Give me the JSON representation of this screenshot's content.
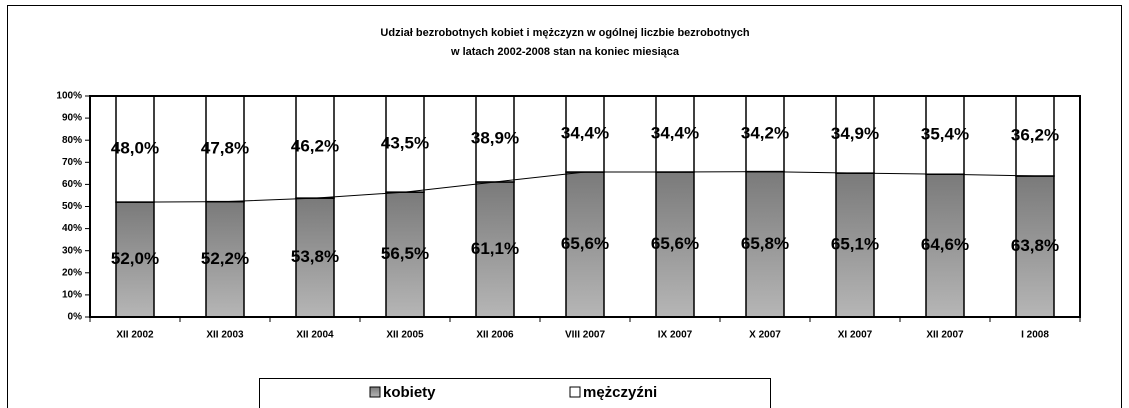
{
  "chart_data": {
    "type": "stacked_bar_100",
    "title": "Udział bezrobotnych kobiet i mężczyzn w ogólnej liczbie  bezrobotnych",
    "subtitle": "w latach 2002-2008 stan na koniec miesiąca",
    "categories": [
      "XII 2002",
      "XII 2003",
      "XII 2004",
      "XII 2005",
      "XII 2006",
      "VIII 2007",
      "IX 2007",
      "X 2007",
      "XI 2007",
      "XII 2007",
      "I 2008"
    ],
    "series": [
      {
        "name": "kobiety",
        "color": "#7a7a7a",
        "values": [
          52.0,
          52.2,
          53.8,
          56.5,
          61.1,
          65.6,
          65.6,
          65.8,
          65.1,
          64.6,
          63.8
        ],
        "value_labels": [
          "52,0%",
          "52,2%",
          "53,8%",
          "56,5%",
          "61,1%",
          "65,6%",
          "65,6%",
          "65,8%",
          "65,1%",
          "64,6%",
          "63,8%"
        ]
      },
      {
        "name": "mężczyźni",
        "color": "#ffffff",
        "values": [
          48.0,
          47.8,
          46.2,
          43.5,
          38.9,
          34.4,
          34.4,
          34.2,
          34.9,
          35.4,
          36.2
        ],
        "value_labels": [
          "48,0%",
          "47,8%",
          "46,2%",
          "43,5%",
          "38,9%",
          "34,4%",
          "34,4%",
          "34,2%",
          "34,9%",
          "35,4%",
          "36,2%"
        ]
      }
    ],
    "ylim": [
      0,
      100
    ],
    "yticks": [
      {
        "value": 0,
        "label": "0%"
      },
      {
        "value": 10,
        "label": "10%"
      },
      {
        "value": 20,
        "label": "20%"
      },
      {
        "value": 30,
        "label": "30%"
      },
      {
        "value": 40,
        "label": "40%"
      },
      {
        "value": 50,
        "label": "50%"
      },
      {
        "value": 60,
        "label": "60%"
      },
      {
        "value": 70,
        "label": "70%"
      },
      {
        "value": 80,
        "label": "80%"
      },
      {
        "value": 90,
        "label": "90%"
      },
      {
        "value": 100,
        "label": "100%"
      }
    ],
    "legend": "bottom"
  }
}
